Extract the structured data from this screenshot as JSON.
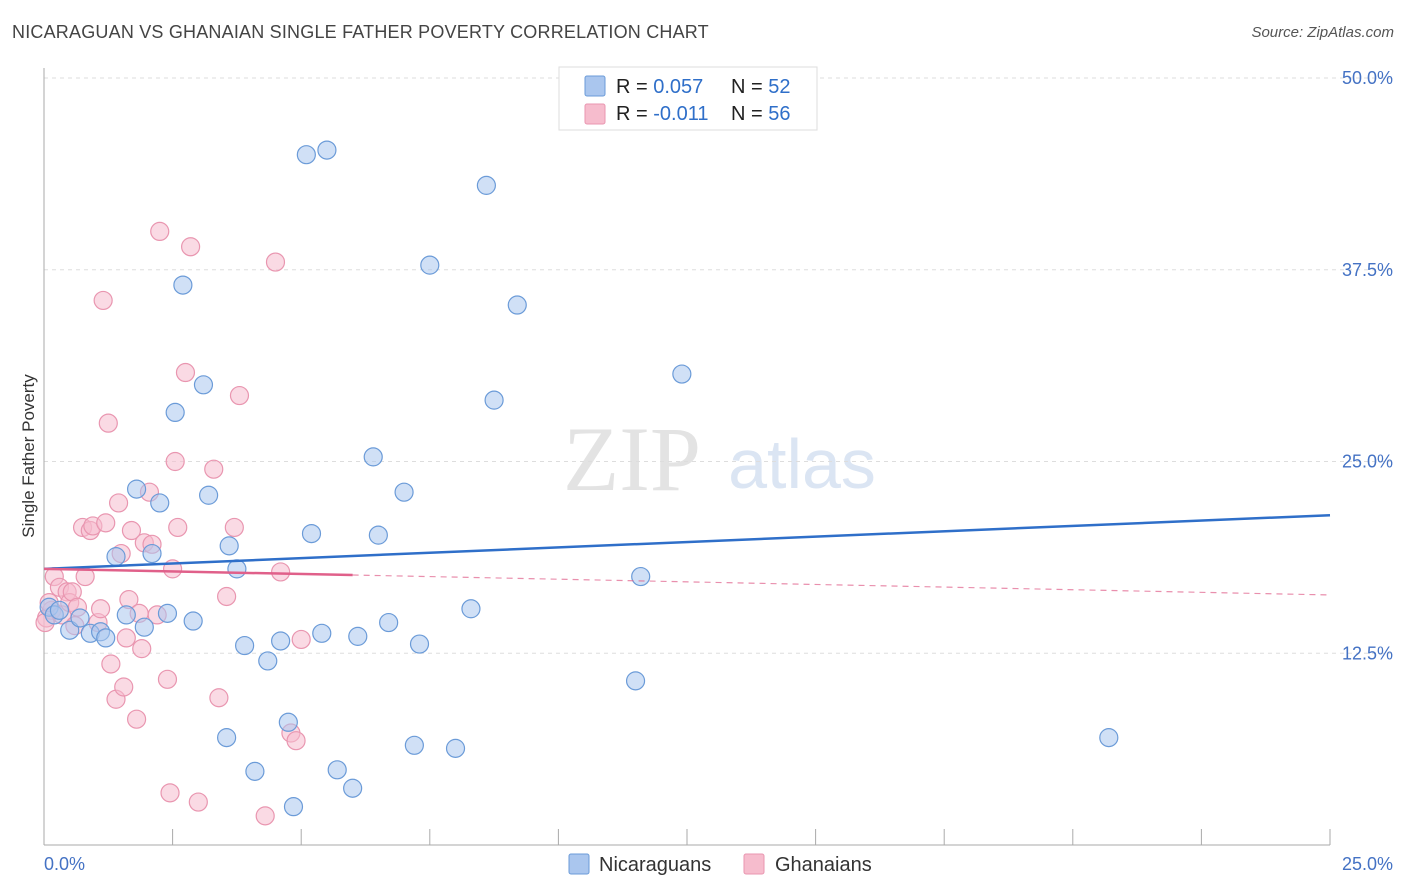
{
  "title": "NICARAGUAN VS GHANAIAN SINGLE FATHER POVERTY CORRELATION CHART",
  "source": "Source: ZipAtlas.com",
  "watermark": {
    "zip": "ZIP",
    "atlas": "atlas"
  },
  "colors": {
    "blue_fill": "#aac6ee",
    "blue_stroke": "#6b9bd8",
    "blue_line": "#2f6fc9",
    "pink_fill": "#f6bccd",
    "pink_stroke": "#e996b0",
    "pink_line": "#e0608a",
    "tick_text": "#4472c4",
    "grid": "#dddddd"
  },
  "legend": {
    "rows": [
      {
        "r_label": "R = ",
        "r_value": "0.057",
        "n_label": "N = ",
        "n_value": "52"
      },
      {
        "r_label": "R = ",
        "r_value": "-0.011",
        "n_label": "N = ",
        "n_value": "56"
      }
    ],
    "bottom": [
      "Nicaraguans",
      "Ghanaians"
    ]
  },
  "chart_data": {
    "type": "scatter",
    "title": "NICARAGUAN VS GHANAIAN SINGLE FATHER POVERTY CORRELATION CHART",
    "xlabel": "",
    "ylabel": "Single Father Poverty",
    "xlim": [
      0,
      25
    ],
    "ylim": [
      0,
      50
    ],
    "x_tick_labels": [
      "0.0%",
      "25.0%"
    ],
    "y_ticks": [
      12.5,
      25.0,
      37.5,
      50.0
    ],
    "y_tick_labels": [
      "12.5%",
      "25.0%",
      "37.5%",
      "50.0%"
    ],
    "grid": true,
    "series": [
      {
        "name": "Nicaraguans",
        "r": 0.057,
        "n": 52,
        "trend": {
          "x": [
            0,
            25
          ],
          "y": [
            18.0,
            21.5
          ],
          "dashed_to": null
        },
        "points": [
          {
            "x": 0.1,
            "y": 15.5
          },
          {
            "x": 0.2,
            "y": 15.0
          },
          {
            "x": 0.3,
            "y": 15.3
          },
          {
            "x": 0.5,
            "y": 14.0
          },
          {
            "x": 0.7,
            "y": 14.8
          },
          {
            "x": 0.9,
            "y": 13.8
          },
          {
            "x": 1.1,
            "y": 13.9
          },
          {
            "x": 1.2,
            "y": 13.5
          },
          {
            "x": 1.4,
            "y": 18.8
          },
          {
            "x": 1.6,
            "y": 15.0
          },
          {
            "x": 1.8,
            "y": 23.2
          },
          {
            "x": 1.95,
            "y": 14.2
          },
          {
            "x": 2.1,
            "y": 19.0
          },
          {
            "x": 2.25,
            "y": 22.3
          },
          {
            "x": 2.4,
            "y": 15.1
          },
          {
            "x": 2.55,
            "y": 28.2
          },
          {
            "x": 2.7,
            "y": 36.5
          },
          {
            "x": 2.9,
            "y": 14.6
          },
          {
            "x": 3.1,
            "y": 30.0
          },
          {
            "x": 3.2,
            "y": 22.8
          },
          {
            "x": 3.55,
            "y": 7.0
          },
          {
            "x": 3.6,
            "y": 19.5
          },
          {
            "x": 3.75,
            "y": 18.0
          },
          {
            "x": 3.9,
            "y": 13.0
          },
          {
            "x": 4.1,
            "y": 4.8
          },
          {
            "x": 4.35,
            "y": 12.0
          },
          {
            "x": 4.6,
            "y": 13.3
          },
          {
            "x": 4.75,
            "y": 8.0
          },
          {
            "x": 4.85,
            "y": 2.5
          },
          {
            "x": 5.1,
            "y": 45.0
          },
          {
            "x": 5.2,
            "y": 20.3
          },
          {
            "x": 5.4,
            "y": 13.8
          },
          {
            "x": 5.5,
            "y": 45.3
          },
          {
            "x": 5.7,
            "y": 4.9
          },
          {
            "x": 6.0,
            "y": 3.7
          },
          {
            "x": 6.1,
            "y": 13.6
          },
          {
            "x": 6.4,
            "y": 25.3
          },
          {
            "x": 6.5,
            "y": 20.2
          },
          {
            "x": 6.7,
            "y": 14.5
          },
          {
            "x": 7.0,
            "y": 23.0
          },
          {
            "x": 7.2,
            "y": 6.5
          },
          {
            "x": 7.5,
            "y": 37.8
          },
          {
            "x": 7.3,
            "y": 13.1
          },
          {
            "x": 8.0,
            "y": 6.3
          },
          {
            "x": 8.3,
            "y": 15.4
          },
          {
            "x": 8.6,
            "y": 43.0
          },
          {
            "x": 8.75,
            "y": 29.0
          },
          {
            "x": 9.2,
            "y": 35.2
          },
          {
            "x": 11.6,
            "y": 17.5
          },
          {
            "x": 11.5,
            "y": 10.7
          },
          {
            "x": 12.4,
            "y": 30.7
          },
          {
            "x": 20.7,
            "y": 7.0
          }
        ]
      },
      {
        "name": "Ghanaians",
        "r": -0.011,
        "n": 56,
        "trend": {
          "x": [
            0,
            6
          ],
          "y": [
            18.0,
            17.6
          ],
          "dashed_to": {
            "x": 25,
            "y": 16.3
          }
        },
        "points": [
          {
            "x": 0.05,
            "y": 14.8
          },
          {
            "x": 0.15,
            "y": 15.3
          },
          {
            "x": 0.2,
            "y": 17.5
          },
          {
            "x": 0.3,
            "y": 16.8
          },
          {
            "x": 0.35,
            "y": 15.0
          },
          {
            "x": 0.45,
            "y": 16.5
          },
          {
            "x": 0.5,
            "y": 15.8
          },
          {
            "x": 0.55,
            "y": 16.5
          },
          {
            "x": 0.6,
            "y": 14.3
          },
          {
            "x": 0.65,
            "y": 15.5
          },
          {
            "x": 0.75,
            "y": 20.7
          },
          {
            "x": 0.8,
            "y": 17.5
          },
          {
            "x": 0.9,
            "y": 20.5
          },
          {
            "x": 0.95,
            "y": 20.8
          },
          {
            "x": 1.05,
            "y": 14.5
          },
          {
            "x": 1.1,
            "y": 15.4
          },
          {
            "x": 1.15,
            "y": 35.5
          },
          {
            "x": 1.2,
            "y": 21.0
          },
          {
            "x": 1.25,
            "y": 27.5
          },
          {
            "x": 1.3,
            "y": 11.8
          },
          {
            "x": 1.4,
            "y": 9.5
          },
          {
            "x": 1.45,
            "y": 22.3
          },
          {
            "x": 1.5,
            "y": 19.0
          },
          {
            "x": 1.55,
            "y": 10.3
          },
          {
            "x": 1.6,
            "y": 13.5
          },
          {
            "x": 1.65,
            "y": 16.0
          },
          {
            "x": 1.7,
            "y": 20.5
          },
          {
            "x": 1.8,
            "y": 8.2
          },
          {
            "x": 1.85,
            "y": 15.1
          },
          {
            "x": 1.9,
            "y": 12.8
          },
          {
            "x": 1.95,
            "y": 19.7
          },
          {
            "x": 2.05,
            "y": 23.0
          },
          {
            "x": 2.1,
            "y": 19.6
          },
          {
            "x": 2.2,
            "y": 15.0
          },
          {
            "x": 2.25,
            "y": 40.0
          },
          {
            "x": 2.4,
            "y": 10.8
          },
          {
            "x": 2.45,
            "y": 3.4
          },
          {
            "x": 2.5,
            "y": 18.0
          },
          {
            "x": 2.55,
            "y": 25.0
          },
          {
            "x": 2.6,
            "y": 20.7
          },
          {
            "x": 2.75,
            "y": 30.8
          },
          {
            "x": 2.85,
            "y": 39.0
          },
          {
            "x": 3.0,
            "y": 2.8
          },
          {
            "x": 3.3,
            "y": 24.5
          },
          {
            "x": 3.4,
            "y": 9.6
          },
          {
            "x": 3.55,
            "y": 16.2
          },
          {
            "x": 3.7,
            "y": 20.7
          },
          {
            "x": 3.8,
            "y": 29.3
          },
          {
            "x": 4.3,
            "y": 1.9
          },
          {
            "x": 4.5,
            "y": 38.0
          },
          {
            "x": 4.6,
            "y": 17.8
          },
          {
            "x": 4.8,
            "y": 7.3
          },
          {
            "x": 4.9,
            "y": 6.8
          },
          {
            "x": 5.0,
            "y": 13.4
          },
          {
            "x": 0.02,
            "y": 14.5
          },
          {
            "x": 0.1,
            "y": 15.8
          }
        ]
      }
    ]
  }
}
